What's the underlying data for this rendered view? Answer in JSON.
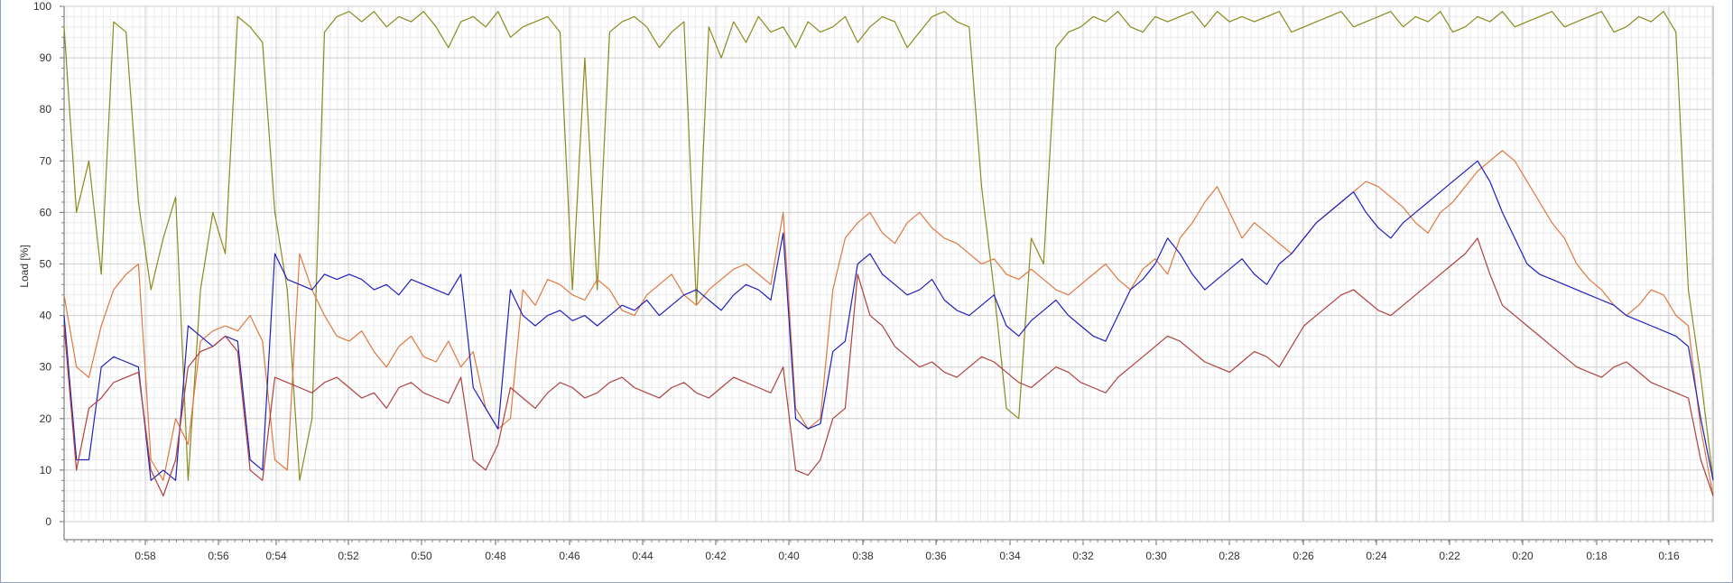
{
  "chart_data": {
    "type": "line",
    "ylabel": "Load [%]",
    "xlabel": "",
    "title": "",
    "ylim": [
      0,
      100
    ],
    "y_ticks": [
      0,
      10,
      20,
      30,
      40,
      50,
      60,
      70,
      80,
      90,
      100
    ],
    "x_tick_labels": [
      "0:58",
      "0:56",
      "0:54",
      "0:52",
      "0:50",
      "0:48",
      "0:46",
      "0:44",
      "0:42",
      "0:40",
      "0:38",
      "0:36",
      "0:34",
      "0:32",
      "0:30",
      "0:28",
      "0:26",
      "0:24",
      "0:22",
      "0:20",
      "0:18",
      "0:16"
    ],
    "x_axis": "elapsed time, decreasing left to right",
    "grid": true,
    "legend": "none",
    "series": [
      {
        "color": "#8a8a1e",
        "values": [
          96,
          60,
          70,
          48,
          97,
          95,
          62,
          45,
          55,
          63,
          8,
          45,
          60,
          52,
          98,
          96,
          93,
          60,
          45,
          8,
          20,
          95,
          98,
          99,
          97,
          99,
          96,
          98,
          97,
          99,
          96,
          92,
          97,
          98,
          96,
          99,
          94,
          96,
          97,
          98,
          95,
          45,
          90,
          45,
          95,
          97,
          98,
          96,
          92,
          95,
          97,
          42,
          96,
          90,
          97,
          93,
          98,
          95,
          96,
          92,
          97,
          95,
          96,
          98,
          93,
          96,
          98,
          97,
          92,
          95,
          98,
          99,
          97,
          96,
          65,
          45,
          22,
          20,
          55,
          50,
          92,
          95,
          96,
          98,
          97,
          99,
          96,
          95,
          98,
          97,
          98,
          99,
          96,
          99,
          97,
          98,
          97,
          98,
          99,
          95,
          96,
          97,
          98,
          99,
          96,
          97,
          98,
          99,
          96,
          98,
          97,
          99,
          95,
          96,
          98,
          97,
          99,
          96,
          97,
          98,
          99,
          96,
          97,
          98,
          99,
          95,
          96,
          98,
          97,
          99,
          95,
          45,
          28,
          8
        ]
      },
      {
        "color": "#e07840",
        "values": [
          44,
          30,
          28,
          38,
          45,
          48,
          50,
          12,
          8,
          20,
          15,
          35,
          37,
          38,
          37,
          40,
          35,
          12,
          10,
          52,
          45,
          40,
          36,
          35,
          37,
          33,
          30,
          34,
          36,
          32,
          31,
          35,
          30,
          33,
          22,
          18,
          20,
          45,
          42,
          47,
          46,
          44,
          43,
          47,
          45,
          41,
          40,
          44,
          46,
          48,
          44,
          42,
          45,
          47,
          49,
          50,
          48,
          46,
          60,
          22,
          18,
          20,
          45,
          55,
          58,
          60,
          56,
          54,
          58,
          60,
          57,
          55,
          54,
          52,
          50,
          51,
          48,
          47,
          49,
          47,
          45,
          44,
          46,
          48,
          50,
          47,
          45,
          49,
          51,
          48,
          55,
          58,
          62,
          65,
          60,
          55,
          58,
          56,
          54,
          52,
          55,
          58,
          60,
          62,
          64,
          66,
          65,
          63,
          61,
          58,
          56,
          60,
          62,
          65,
          68,
          70,
          72,
          70,
          66,
          62,
          58,
          55,
          50,
          47,
          45,
          42,
          40,
          42,
          45,
          44,
          40,
          38,
          18,
          5
        ]
      },
      {
        "color": "#2020c0",
        "values": [
          40,
          12,
          12,
          30,
          32,
          31,
          30,
          8,
          10,
          8,
          38,
          36,
          34,
          36,
          35,
          12,
          10,
          52,
          47,
          46,
          45,
          48,
          47,
          48,
          47,
          45,
          46,
          44,
          47,
          46,
          45,
          44,
          48,
          26,
          22,
          18,
          45,
          40,
          38,
          40,
          41,
          39,
          40,
          38,
          40,
          42,
          41,
          43,
          40,
          42,
          44,
          45,
          43,
          41,
          44,
          46,
          45,
          43,
          56,
          20,
          18,
          19,
          33,
          35,
          50,
          52,
          48,
          46,
          44,
          45,
          47,
          43,
          41,
          40,
          42,
          44,
          38,
          36,
          39,
          41,
          43,
          40,
          38,
          36,
          35,
          40,
          45,
          47,
          50,
          55,
          52,
          48,
          45,
          47,
          49,
          51,
          48,
          46,
          50,
          52,
          55,
          58,
          60,
          62,
          64,
          60,
          57,
          55,
          58,
          60,
          62,
          64,
          66,
          68,
          70,
          66,
          60,
          55,
          50,
          48,
          47,
          46,
          45,
          44,
          43,
          42,
          40,
          39,
          38,
          37,
          36,
          34,
          20,
          8
        ]
      },
      {
        "color": "#b04040",
        "values": [
          38,
          10,
          22,
          24,
          27,
          28,
          29,
          10,
          5,
          12,
          30,
          33,
          34,
          36,
          33,
          10,
          8,
          28,
          27,
          26,
          25,
          27,
          28,
          26,
          24,
          25,
          22,
          26,
          27,
          25,
          24,
          23,
          28,
          12,
          10,
          15,
          26,
          24,
          22,
          25,
          27,
          26,
          24,
          25,
          27,
          28,
          26,
          25,
          24,
          26,
          27,
          25,
          24,
          26,
          28,
          27,
          26,
          25,
          30,
          10,
          9,
          12,
          20,
          22,
          48,
          40,
          38,
          34,
          32,
          30,
          31,
          29,
          28,
          30,
          32,
          31,
          29,
          27,
          26,
          28,
          30,
          29,
          27,
          26,
          25,
          28,
          30,
          32,
          34,
          36,
          35,
          33,
          31,
          30,
          29,
          31,
          33,
          32,
          30,
          34,
          38,
          40,
          42,
          44,
          45,
          43,
          41,
          40,
          42,
          44,
          46,
          48,
          50,
          52,
          55,
          48,
          42,
          40,
          38,
          36,
          34,
          32,
          30,
          29,
          28,
          30,
          31,
          29,
          27,
          26,
          25,
          24,
          12,
          5
        ]
      }
    ]
  }
}
